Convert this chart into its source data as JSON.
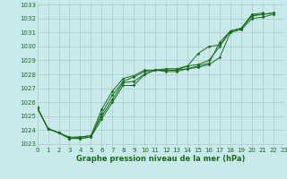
{
  "title": "Graphe pression niveau de la mer (hPa)",
  "background_color": "#c8eaea",
  "grid_color": "#b0c8c8",
  "line_color": "#1a6b1a",
  "xlim": [
    0,
    23
  ],
  "ylim": [
    1022.8,
    1033.2
  ],
  "yticks": [
    1023,
    1024,
    1025,
    1026,
    1027,
    1028,
    1029,
    1030,
    1031,
    1032,
    1033
  ],
  "xticks": [
    0,
    1,
    2,
    3,
    4,
    5,
    6,
    7,
    8,
    9,
    10,
    11,
    12,
    13,
    14,
    15,
    16,
    17,
    18,
    19,
    20,
    21,
    22,
    23
  ],
  "series": [
    [
      1025.6,
      1024.1,
      1023.8,
      1023.4,
      1023.4,
      1023.5,
      1025.2,
      1026.5,
      1027.5,
      1027.8,
      1028.2,
      1028.3,
      1028.3,
      1028.3,
      1028.4,
      1028.6,
      1028.8,
      1030.3,
      1031.1,
      1031.3,
      1032.3,
      1032.4,
      null,
      null
    ],
    [
      1025.6,
      1024.1,
      1023.8,
      1023.4,
      1023.4,
      1023.5,
      1024.8,
      1026.0,
      1027.2,
      1027.2,
      1028.0,
      1028.3,
      1028.2,
      1028.2,
      1028.4,
      1028.5,
      1028.7,
      1029.2,
      1031.0,
      1031.2,
      1032.0,
      1032.1,
      1032.3,
      null
    ],
    [
      1025.6,
      1024.1,
      1023.8,
      1023.4,
      1023.5,
      1023.6,
      1025.0,
      1026.2,
      1027.4,
      1027.5,
      1028.0,
      1028.3,
      1028.3,
      1028.3,
      1028.6,
      1029.5,
      1030.0,
      1030.1,
      1031.1,
      1031.3,
      1032.2,
      1032.3,
      1032.4,
      null
    ],
    [
      1025.6,
      1024.1,
      1023.8,
      1023.5,
      1023.5,
      1023.6,
      1025.5,
      1026.8,
      1027.7,
      1027.9,
      1028.3,
      1028.3,
      1028.4,
      1028.4,
      1028.6,
      1028.7,
      1029.0,
      1030.0,
      1031.1,
      1031.3,
      1032.2,
      1032.3,
      1032.4,
      null
    ]
  ]
}
